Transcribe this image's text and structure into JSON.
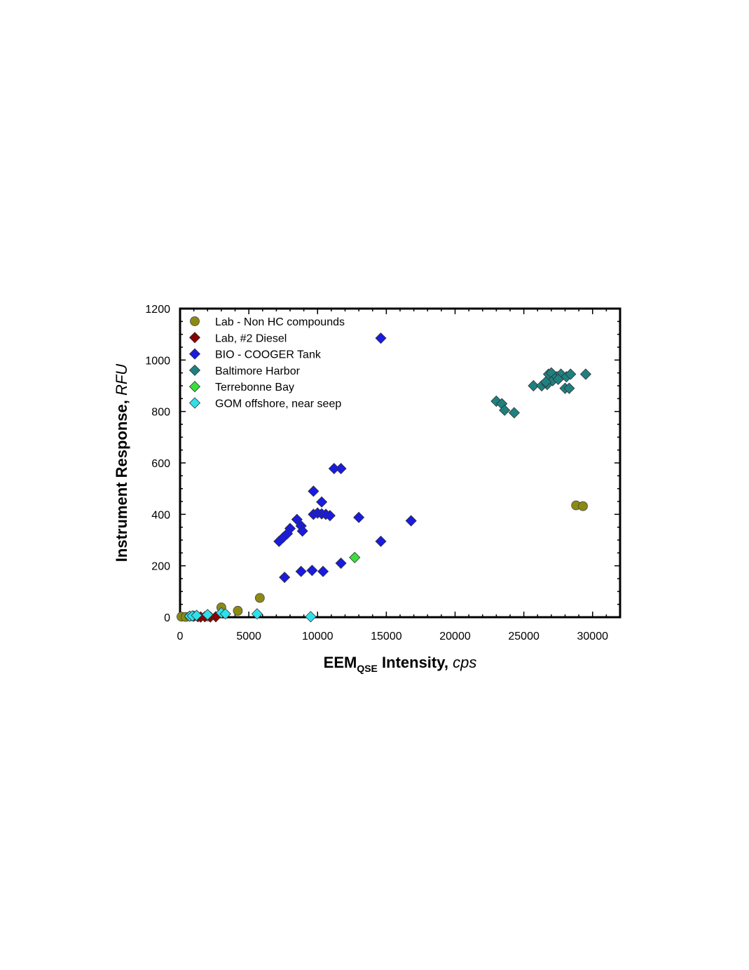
{
  "chart_data": {
    "type": "scatter",
    "xlabel": {
      "main": "EEM",
      "sub": "QSE",
      "middle": " Intensity",
      "italic": "cps"
    },
    "ylabel": {
      "main": "Instrument Response",
      "italic": "RFU"
    },
    "xlim": [
      0,
      32000
    ],
    "ylim": [
      0,
      1200
    ],
    "x_ticks": [
      "0",
      "5000",
      "10000",
      "15000",
      "20000",
      "25000",
      "30000"
    ],
    "x_tick_values": [
      0,
      5000,
      10000,
      15000,
      20000,
      25000,
      30000
    ],
    "y_ticks": [
      "0",
      "200",
      "400",
      "600",
      "800",
      "1000",
      "1200"
    ],
    "y_tick_values": [
      0,
      200,
      400,
      600,
      800,
      1000,
      1200
    ],
    "grid": false,
    "legend_position": "top-left",
    "series": [
      {
        "name": "Lab - Non HC compounds",
        "marker": "circle",
        "color": "#8b8a14",
        "points": [
          [
            100,
            2
          ],
          [
            400,
            1
          ],
          [
            700,
            3
          ],
          [
            1000,
            4
          ],
          [
            2000,
            3
          ],
          [
            3000,
            38
          ],
          [
            4200,
            25
          ],
          [
            5800,
            75
          ],
          [
            28800,
            435
          ],
          [
            29300,
            432
          ]
        ]
      },
      {
        "name": "Lab, #2 Diesel",
        "marker": "diamond",
        "color": "#8b0000",
        "points": [
          [
            1000,
            4
          ],
          [
            1300,
            2
          ],
          [
            1500,
            1
          ],
          [
            1800,
            2
          ],
          [
            2200,
            1
          ],
          [
            2600,
            2
          ]
        ]
      },
      {
        "name": "BIO - COOGER Tank",
        "marker": "diamond",
        "color": "#1a1ae0",
        "points": [
          [
            14600,
            1085
          ],
          [
            11200,
            578
          ],
          [
            11700,
            578
          ],
          [
            9700,
            490
          ],
          [
            10300,
            448
          ],
          [
            9700,
            400
          ],
          [
            10000,
            405
          ],
          [
            10300,
            402
          ],
          [
            10600,
            400
          ],
          [
            10900,
            395
          ],
          [
            8500,
            380
          ],
          [
            8800,
            355
          ],
          [
            8900,
            335
          ],
          [
            8000,
            345
          ],
          [
            7800,
            325
          ],
          [
            7500,
            310
          ],
          [
            7200,
            295
          ],
          [
            13000,
            388
          ],
          [
            16800,
            375
          ],
          [
            14600,
            295
          ],
          [
            11700,
            210
          ],
          [
            9600,
            182
          ],
          [
            8800,
            178
          ],
          [
            10400,
            178
          ],
          [
            7600,
            155
          ]
        ]
      },
      {
        "name": "Baltimore Harbor",
        "marker": "diamond",
        "color": "#1f8080",
        "points": [
          [
            23000,
            840
          ],
          [
            23400,
            830
          ],
          [
            23600,
            805
          ],
          [
            24300,
            795
          ],
          [
            25700,
            900
          ],
          [
            26300,
            900
          ],
          [
            26700,
            905
          ],
          [
            26800,
            945
          ],
          [
            27000,
            950
          ],
          [
            27100,
            920
          ],
          [
            27400,
            935
          ],
          [
            27700,
            945
          ],
          [
            28100,
            935
          ],
          [
            28400,
            945
          ],
          [
            29500,
            945
          ],
          [
            28000,
            890
          ],
          [
            28300,
            890
          ],
          [
            27500,
            925
          ],
          [
            26600,
            915
          ]
        ]
      },
      {
        "name": "Terrebonne Bay",
        "marker": "diamond",
        "color": "#3adf3a",
        "points": [
          [
            12700,
            232
          ]
        ]
      },
      {
        "name": "GOM offshore, near seep",
        "marker": "diamond",
        "color": "#2fe0ec",
        "points": [
          [
            700,
            4
          ],
          [
            900,
            5
          ],
          [
            1200,
            7
          ],
          [
            2000,
            10
          ],
          [
            3000,
            17
          ],
          [
            3300,
            13
          ],
          [
            5600,
            13
          ],
          [
            9500,
            2
          ]
        ]
      }
    ]
  }
}
